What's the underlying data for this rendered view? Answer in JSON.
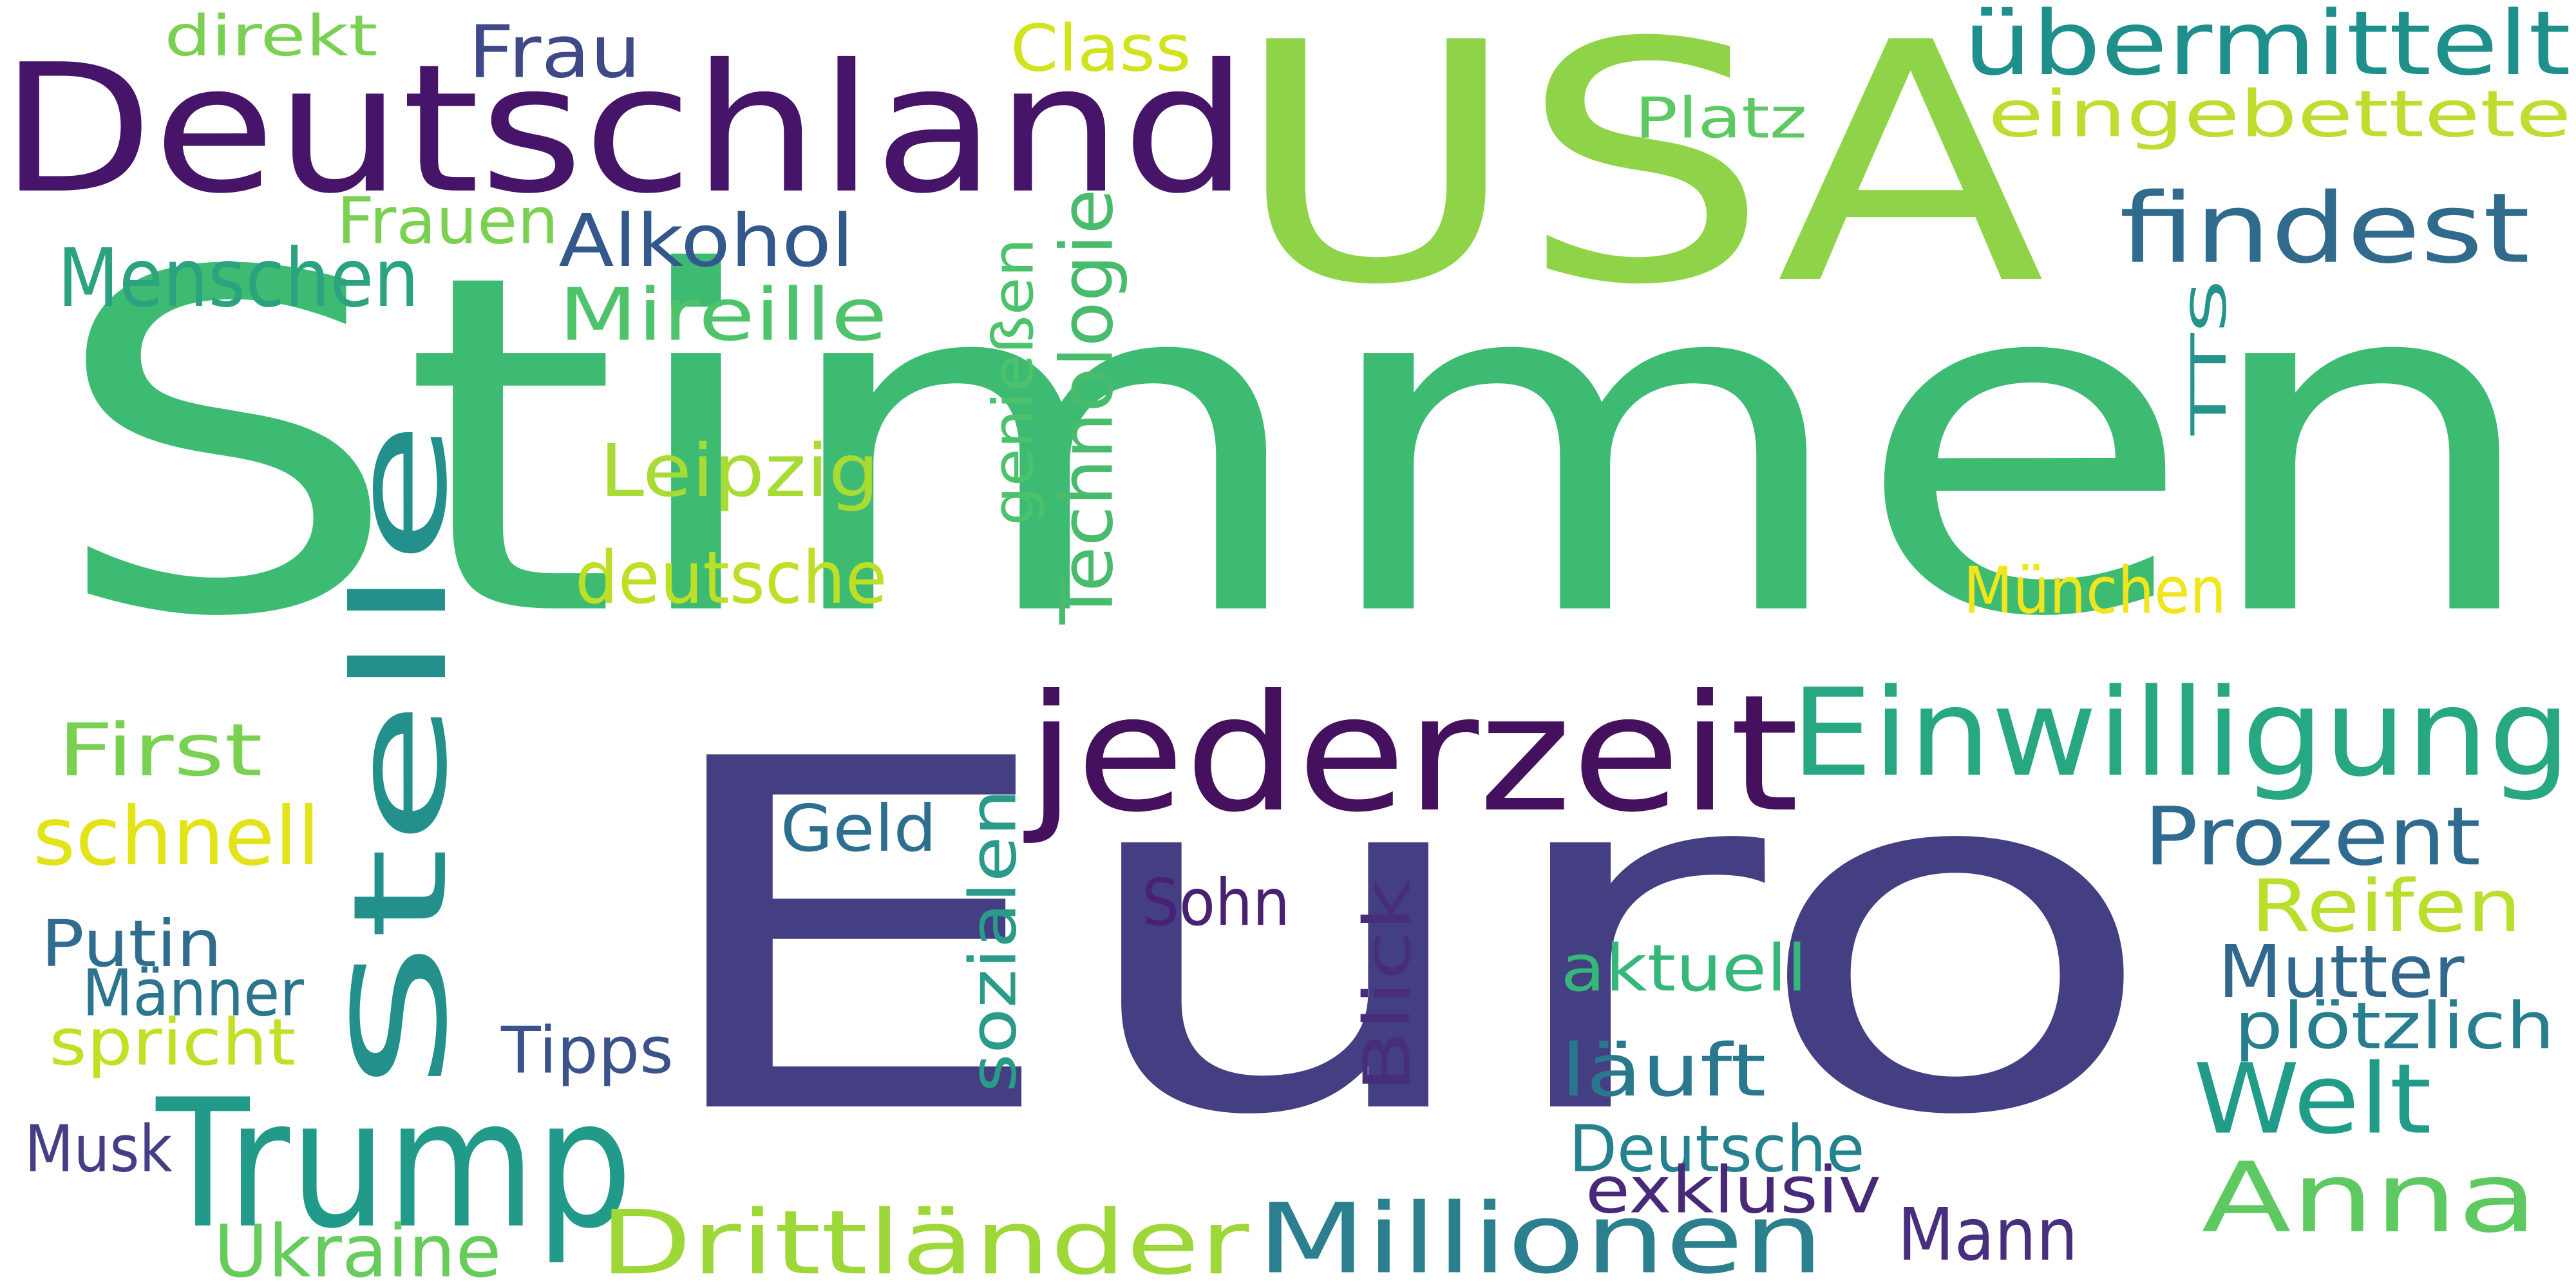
{
  "words": [
    {
      "text": "Stimmen",
      "color": "#3dbb73",
      "vertical": false
    },
    {
      "text": "Euro",
      "color": "#433f82",
      "vertical": false
    },
    {
      "text": "USA",
      "color": "#8fd448",
      "vertical": false
    },
    {
      "text": "Deutschland",
      "color": "#461468",
      "vertical": false
    },
    {
      "text": "Stelle",
      "color": "#23908c",
      "vertical": true
    },
    {
      "text": "Trump",
      "color": "#219a89",
      "vertical": false
    },
    {
      "text": "jederzeit",
      "color": "#45115e",
      "vertical": false
    },
    {
      "text": "Einwilligung",
      "color": "#28a882",
      "vertical": false
    },
    {
      "text": "findest",
      "color": "#306a8c",
      "vertical": false
    },
    {
      "text": "Millionen",
      "color": "#2c7f8e",
      "vertical": false
    },
    {
      "text": "Drittländer",
      "color": "#9ed838",
      "vertical": false
    },
    {
      "text": "übermittelt",
      "color": "#1f8f8b",
      "vertical": false
    },
    {
      "text": "eingebettete",
      "color": "#c0dc2e",
      "vertical": false
    },
    {
      "text": "Anna",
      "color": "#5ec960",
      "vertical": false
    },
    {
      "text": "Welt",
      "color": "#209c88",
      "vertical": false
    },
    {
      "text": "Technologie",
      "color": "#48bc6c",
      "vertical": true
    },
    {
      "text": "Menschen",
      "color": "#2ba380",
      "vertical": false
    },
    {
      "text": "Alkohol",
      "color": "#33588b",
      "vertical": false
    },
    {
      "text": "Prozent",
      "color": "#2e6b8e",
      "vertical": false
    },
    {
      "text": "Reifen",
      "color": "#b9de2c",
      "vertical": false
    },
    {
      "text": "Mireille",
      "color": "#4ec36b",
      "vertical": false
    },
    {
      "text": "sozialen",
      "color": "#2a9a89",
      "vertical": true
    },
    {
      "text": "Blick",
      "color": "#472d7b",
      "vertical": true
    },
    {
      "text": "Leipzig",
      "color": "#a8db34",
      "vertical": false
    },
    {
      "text": "deutsche",
      "color": "#bddf26",
      "vertical": false
    },
    {
      "text": "Geld",
      "color": "#2d6f8e",
      "vertical": false
    },
    {
      "text": "schnell",
      "color": "#e2e418",
      "vertical": false
    },
    {
      "text": "First",
      "color": "#79d151",
      "vertical": false
    },
    {
      "text": "Sohn",
      "color": "#482173",
      "vertical": false
    },
    {
      "text": "Frau",
      "color": "#3f4889",
      "vertical": false
    },
    {
      "text": "Frauen",
      "color": "#7ad151",
      "vertical": false
    },
    {
      "text": "TTS",
      "color": "#24948a",
      "vertical": true
    },
    {
      "text": "genießen",
      "color": "#4cc26c",
      "vertical": true
    },
    {
      "text": "läuft",
      "color": "#2a788e",
      "vertical": false
    },
    {
      "text": "Mutter",
      "color": "#31688e",
      "vertical": false
    },
    {
      "text": "Deutsche",
      "color": "#26818e",
      "vertical": false
    },
    {
      "text": "Mann",
      "color": "#472f7d",
      "vertical": false
    },
    {
      "text": "exklusiv",
      "color": "#482979",
      "vertical": false
    },
    {
      "text": "Ukraine",
      "color": "#67cc5c",
      "vertical": false
    },
    {
      "text": "Putin",
      "color": "#2f6c8e",
      "vertical": false
    },
    {
      "text": "Männer",
      "color": "#2b758e",
      "vertical": false
    },
    {
      "text": "spricht",
      "color": "#c2df23",
      "vertical": false
    },
    {
      "text": "Tipps",
      "color": "#3b528b",
      "vertical": false
    },
    {
      "text": "Musk",
      "color": "#433e85",
      "vertical": false
    },
    {
      "text": "aktuell",
      "color": "#35b779",
      "vertical": false
    },
    {
      "text": "plötzlich",
      "color": "#277f8e",
      "vertical": false
    },
    {
      "text": "München",
      "color": "#f1e51d",
      "vertical": false
    },
    {
      "text": "Class",
      "color": "#d2e21b",
      "vertical": false
    },
    {
      "text": "direkt",
      "color": "#7ad151",
      "vertical": false
    },
    {
      "text": "Platz",
      "color": "#5ec962",
      "vertical": false
    }
  ]
}
